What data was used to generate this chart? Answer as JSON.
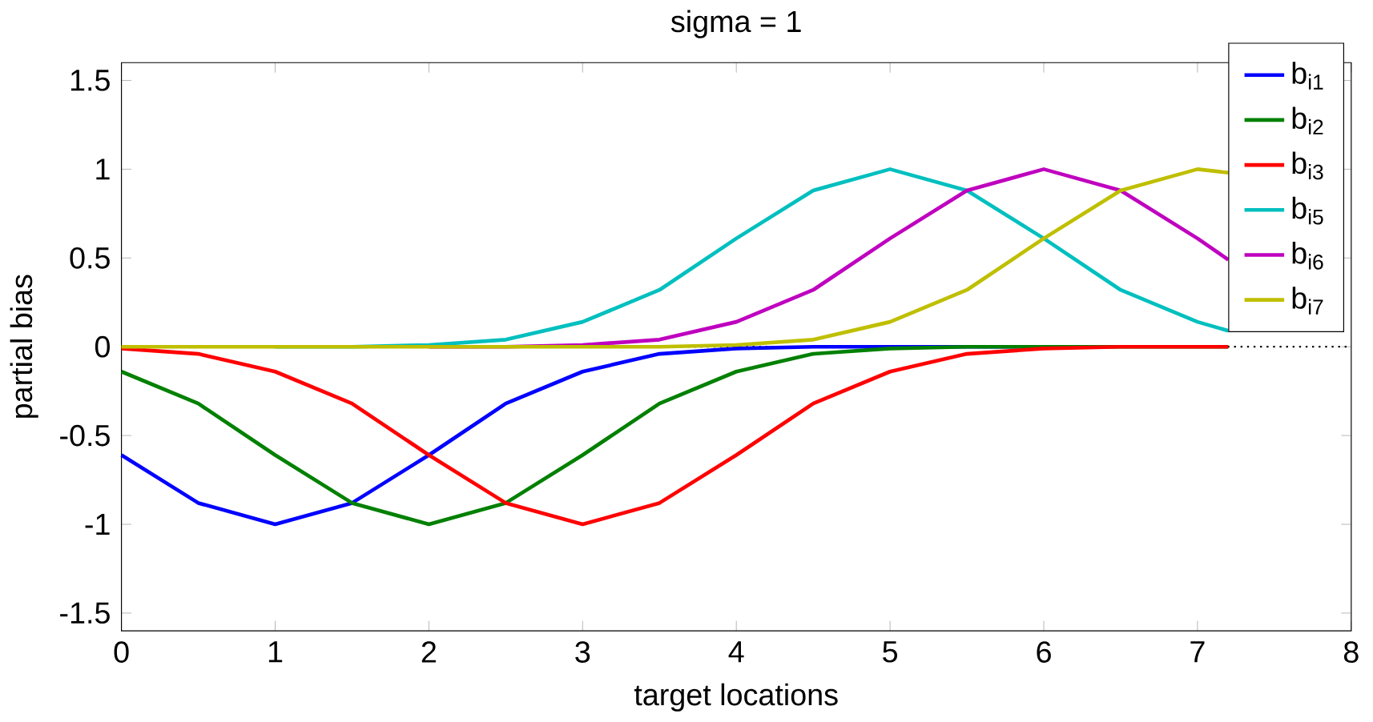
{
  "chart_data": {
    "type": "line",
    "title": "sigma = 1",
    "xlabel": "target locations",
    "ylabel": "partial bias",
    "x": [
      0,
      0.5,
      1,
      1.5,
      2,
      2.5,
      3,
      3.5,
      4,
      4.5,
      5,
      5.5,
      6,
      6.5,
      7,
      7.2
    ],
    "series": [
      {
        "name": "b$_{i1}$",
        "color": "#0000ff",
        "values": [
          -0.61,
          -0.88,
          -1,
          -0.88,
          -0.61,
          -0.32,
          -0.14,
          -0.04,
          -0.01,
          0,
          0,
          0,
          0,
          null,
          null,
          null
        ]
      },
      {
        "name": "b$_{i2}$",
        "color": "#008000",
        "values": [
          -0.14,
          -0.32,
          -0.61,
          -0.88,
          -1,
          -0.88,
          -0.61,
          -0.32,
          -0.14,
          -0.04,
          -0.01,
          0,
          0,
          0,
          0,
          0
        ]
      },
      {
        "name": "b$_{i3}$",
        "color": "#ff0000",
        "values": [
          -0.01,
          -0.04,
          -0.14,
          -0.32,
          -0.61,
          -0.88,
          -1,
          -0.88,
          -0.61,
          -0.32,
          -0.14,
          -0.04,
          -0.01,
          0,
          0,
          0
        ]
      },
      {
        "name": "b$_{i5}$",
        "color": "#00bfbf",
        "values": [
          null,
          null,
          0,
          0,
          0.01,
          0.04,
          0.14,
          0.32,
          0.61,
          0.88,
          1,
          0.88,
          0.61,
          0.32,
          0.14,
          0.09
        ]
      },
      {
        "name": "b$_{i6}$",
        "color": "#bf00bf",
        "values": [
          null,
          null,
          null,
          null,
          0,
          0,
          0.01,
          0.04,
          0.14,
          0.32,
          0.61,
          0.88,
          1,
          0.88,
          0.61,
          0.49
        ]
      },
      {
        "name": "b$_{i7}$",
        "color": "#bfbf00",
        "values": [
          0,
          0,
          0,
          0,
          0,
          0,
          0,
          0,
          0.01,
          0.04,
          0.14,
          0.32,
          0.61,
          0.88,
          1,
          0.98
        ]
      }
    ],
    "xlim": [
      0,
      8
    ],
    "xticks": [
      0,
      1,
      2,
      3,
      4,
      5,
      6,
      7,
      8
    ],
    "ylim": [
      -1.6,
      1.6
    ],
    "yticks": [
      -1.5,
      -1,
      -0.5,
      0,
      0.5,
      1,
      1.5
    ],
    "ref_lines": [
      {
        "axis": "y",
        "value": 0,
        "color": "#000000",
        "line_style": "dotted"
      }
    ],
    "legend": "top right",
    "grid": false
  }
}
